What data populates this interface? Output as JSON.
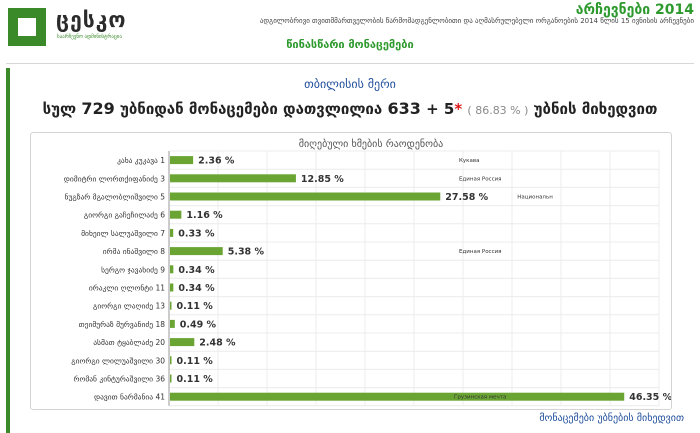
{
  "brand": {
    "name": "ცესკო",
    "tagline": "საარჩევნო ადმინისტრაცია"
  },
  "header": {
    "elections": "არჩევნები 2014",
    "headline": "ადგილობრივი თვითმმართველობის წარმომადგენლობითი და აღმასრულებელი ორგანოების 2014 წლის 15 ივნისის არჩევნები",
    "preliminary": "წინასწარი მონაცემები"
  },
  "race": {
    "title": "თბილისის მერი",
    "label_total": "სულ",
    "total": "729",
    "label_received": "უბნიდან მონაცემები დათვლილია",
    "received": "633",
    "extra": "+ 5",
    "star": "*",
    "percent": "( 86.83 % )",
    "label_suffix": "უბნის მიხედვით"
  },
  "footer": {
    "link": "მონაცემები უბნების მიხედვით"
  },
  "colors": {
    "bar": "#6aa534",
    "brand_green": "#3a8a2a",
    "link_blue": "#1f4e9c"
  },
  "chart_data": {
    "type": "bar",
    "orientation": "horizontal",
    "title": "მიღებული ხმების რაოდენობა",
    "xlabel": "",
    "ylabel": "",
    "xlim": [
      0,
      50
    ],
    "grid": true,
    "categories": [
      "კახა კუკავა 1",
      "დიმიტრი ლორთქიფანიძე 3",
      "ნუგზარ მგალობლიშვილი 5",
      "გიორგი გაჩეჩილაძე 6",
      "მიხეილ სალუაშვილი 7",
      "ირმა ინაშვილი 8",
      "სერგო ჯავახიძე 9",
      "ირაკლი ღლონტი 11",
      "გიორგი ლაღიძე 13",
      "თეიმურაზ მურვანიძე 18",
      "ასმათ ტყაბლაძე 20",
      "გიორგი ლილუაშვილი 30",
      "რომან კინტურაშვილი 36",
      "დავით ნარმანია 41"
    ],
    "display_categories": [
      "კახა კუკავა 1",
      "დიმიტრი ლორთქიფანიძე 3",
      "ნუგზარ მგალობლიშვილი 5",
      "გიორგი გაჩეჩილაძე 6",
      "მიხეილ სალუაშვილი 7",
      "ირმა ინაშვილი 8",
      "სერგო ჯავახიძე 9",
      "ირაკლი ღლონტი 11",
      "გიორგი ლაღიძე 13",
      "თეიმურაზ მურვანიძე 18",
      "ასმათ ტყაბლაძე 20",
      "გიორგი ლილუაშვილი 30",
      "რომან კინტურაშვილი 36",
      "დავით ნარმანია 41"
    ],
    "values": [
      2.36,
      12.85,
      27.58,
      1.16,
      0.33,
      5.38,
      0.34,
      0.34,
      0.11,
      0.49,
      2.48,
      0.11,
      0.11,
      46.35
    ],
    "value_labels": [
      "2.36 %",
      "12.85 %",
      "27.58 %",
      "1.16 %",
      "0.33 %",
      "5.38 %",
      "0.34 %",
      "0.34 %",
      "0.11 %",
      "0.49 %",
      "2.48 %",
      "0.11 %",
      "0.11 %",
      "46.35 %"
    ],
    "annotations": [
      {
        "category_index": 0,
        "text": "Кукава"
      },
      {
        "category_index": 1,
        "text": "Единая Россия"
      },
      {
        "category_index": 2,
        "text": "Национальн"
      },
      {
        "category_index": 5,
        "text": "Единая Россия"
      },
      {
        "category_index": 13,
        "text": "Грузинская мечта"
      }
    ]
  }
}
